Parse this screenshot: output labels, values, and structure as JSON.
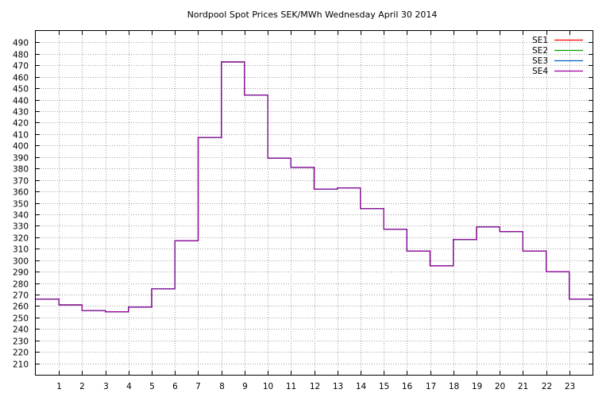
{
  "chart_data": {
    "type": "line",
    "title": "Nordpool Spot Prices SEK/MWh Wednesday April 30 2014",
    "xlabel": "",
    "ylabel": "",
    "x_tick_labels": [
      "1",
      "2",
      "3",
      "4",
      "5",
      "6",
      "7",
      "8",
      "9",
      "10",
      "11",
      "12",
      "13",
      "14",
      "15",
      "16",
      "17",
      "18",
      "19",
      "20",
      "21",
      "22",
      "23"
    ],
    "y_tick_labels": [
      "210",
      "220",
      "230",
      "240",
      "250",
      "260",
      "270",
      "280",
      "290",
      "300",
      "310",
      "320",
      "330",
      "340",
      "350",
      "360",
      "370",
      "380",
      "390",
      "400",
      "410",
      "420",
      "430",
      "440",
      "450",
      "460",
      "470",
      "480",
      "490"
    ],
    "xlim": [
      0,
      24
    ],
    "ylim": [
      200,
      500
    ],
    "grid": true,
    "legend_position": "top-right",
    "x": [
      0,
      1,
      2,
      3,
      4,
      5,
      6,
      7,
      8,
      9,
      10,
      11,
      12,
      13,
      14,
      15,
      16,
      17,
      18,
      19,
      20,
      21,
      22,
      23
    ],
    "step": "post",
    "series": [
      {
        "name": "SE1",
        "color": "#ff0000",
        "values": [
          266,
          261,
          256,
          255,
          259,
          275,
          317,
          407,
          473,
          444,
          389,
          381,
          362,
          363,
          345,
          327,
          308,
          295,
          318,
          329,
          325,
          308,
          290,
          266
        ]
      },
      {
        "name": "SE2",
        "color": "#00a000",
        "values": [
          266,
          261,
          256,
          255,
          259,
          275,
          317,
          407,
          473,
          444,
          389,
          381,
          362,
          363,
          345,
          327,
          308,
          295,
          318,
          329,
          325,
          308,
          290,
          266
        ]
      },
      {
        "name": "SE3",
        "color": "#0060c0",
        "values": [
          266,
          261,
          256,
          255,
          259,
          275,
          317,
          407,
          473,
          444,
          389,
          381,
          362,
          363,
          345,
          327,
          308,
          295,
          318,
          329,
          325,
          308,
          290,
          266
        ]
      },
      {
        "name": "SE4",
        "color": "#a000a0",
        "values": [
          266,
          261,
          256,
          255,
          259,
          275,
          317,
          407,
          473,
          444,
          389,
          381,
          362,
          363,
          345,
          327,
          308,
          295,
          318,
          329,
          325,
          308,
          290,
          266
        ]
      }
    ]
  }
}
